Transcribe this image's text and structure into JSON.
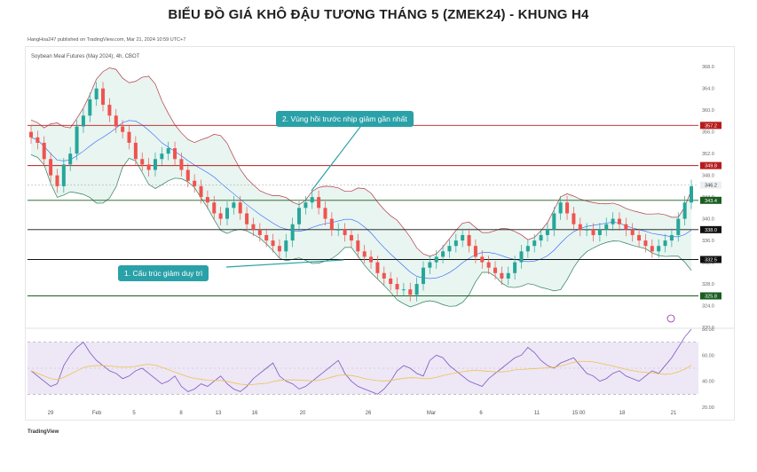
{
  "title": "BIỂU ĐỒ GIÁ KHÔ ĐẬU TƯƠNG THÁNG 5 (ZMEK24) - KHUNG H4",
  "publisher": "HangHoa247 published on TradingView.com, Mar 21, 2024 10:59 UTC+7",
  "symbol_label": "Soybean Meal Futures (May 2024), 4h, CBOT",
  "footer_logo": "TradingView",
  "colors": {
    "up": "#26a69a",
    "down": "#ef5350",
    "bb_fill": "#e8f5f0",
    "bb_upper": "#b23a48",
    "bb_lower": "#2e7d5b",
    "bb_basis": "#2962ff",
    "resistance": "#b71c1c",
    "support": "#1b5e20",
    "neutral_line": "#111111",
    "callout": "#2aa1a8",
    "rsi": "#7e57c2",
    "rsi_ma": "#f2c14e",
    "rsi_band": "#ede7f6"
  },
  "chart_data": {
    "type": "candlestick",
    "title": "BIỂU ĐỒ GIÁ KHÔ ĐẬU TƯƠNG THÁNG 5 (ZMEK24) - KHUNG H4",
    "ylim": [
      320,
      370
    ],
    "price_ticks": [
      320.0,
      324.0,
      328.0,
      332.0,
      336.0,
      340.0,
      344.0,
      348.0,
      352.0,
      356.0,
      360.0,
      364.0,
      368.0
    ],
    "x_ticks": [
      "29",
      "Feb",
      "5",
      "8",
      "13",
      "16",
      "20",
      "26",
      "Mar",
      "6",
      "11",
      "15:00",
      "18",
      "21"
    ],
    "price_close_series": [
      355,
      354,
      351,
      348,
      346,
      350,
      352,
      357,
      359,
      362,
      364,
      361,
      359,
      357,
      356,
      354,
      351,
      350,
      349,
      351,
      352,
      353,
      351,
      349,
      347,
      346,
      344,
      343,
      341,
      340,
      342,
      343,
      341,
      339,
      338,
      337,
      336,
      335,
      334,
      336,
      339,
      342,
      343,
      344,
      342,
      340,
      338,
      338,
      337,
      336,
      334,
      333,
      332,
      330,
      329,
      328,
      327,
      327,
      326,
      328,
      331,
      332,
      333,
      334,
      335,
      336,
      337,
      335,
      333,
      332,
      331,
      330,
      329,
      330,
      332,
      334,
      335,
      336,
      337,
      338,
      341,
      343,
      341,
      339,
      338,
      338,
      337,
      338,
      339,
      340,
      339,
      338,
      337,
      336,
      335,
      334,
      335,
      336,
      337,
      340,
      343,
      346
    ],
    "levels": [
      {
        "value": 357.2,
        "label": "357.2",
        "kind": "resistance"
      },
      {
        "value": 349.8,
        "label": "349.8",
        "kind": "resistance"
      },
      {
        "value": 346.2,
        "label": "346.2",
        "kind": "current"
      },
      {
        "value": 343.4,
        "label": "343.4",
        "kind": "support"
      },
      {
        "value": 338.0,
        "label": "338.0",
        "kind": "neutral"
      },
      {
        "value": 332.5,
        "label": "332.5",
        "kind": "neutral"
      },
      {
        "value": 325.8,
        "label": "325.8",
        "kind": "support"
      }
    ],
    "rsi": {
      "ylim": [
        20,
        80
      ],
      "ticks": [
        20.0,
        40.0,
        60.0,
        80.0
      ],
      "band": [
        30,
        70
      ],
      "values": [
        48,
        44,
        40,
        36,
        38,
        52,
        60,
        66,
        70,
        62,
        56,
        52,
        48,
        46,
        42,
        44,
        48,
        50,
        46,
        42,
        38,
        40,
        44,
        36,
        32,
        34,
        38,
        36,
        40,
        44,
        38,
        34,
        32,
        36,
        42,
        46,
        50,
        54,
        44,
        40,
        38,
        34,
        36,
        40,
        44,
        48,
        52,
        56,
        46,
        40,
        36,
        34,
        32,
        30,
        34,
        40,
        48,
        52,
        50,
        46,
        44,
        56,
        60,
        58,
        52,
        48,
        44,
        40,
        38,
        36,
        42,
        46,
        50,
        54,
        58,
        60,
        66,
        62,
        56,
        52,
        50,
        54,
        56,
        58,
        52,
        46,
        44,
        40,
        42,
        46,
        48,
        44,
        42,
        40,
        44,
        48,
        46,
        52,
        58,
        66,
        74,
        80
      ]
    }
  },
  "annotations": [
    {
      "text": "2. Vùng hồi trước nhịp giảm gần nhất"
    },
    {
      "text": "1. Cấu trúc giảm duy trì"
    }
  ]
}
